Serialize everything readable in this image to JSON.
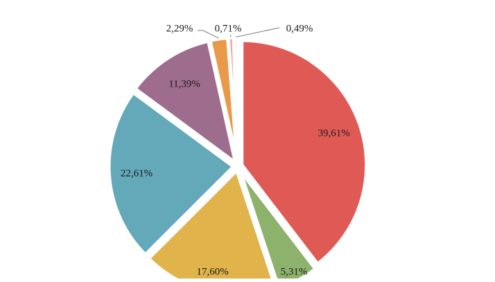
{
  "chart_data": {
    "type": "pie",
    "title": "",
    "slices": [
      {
        "label": "39,61%",
        "value": 39.61,
        "color": "#E05A55"
      },
      {
        "label": "5,31%",
        "value": 5.31,
        "color": "#8CB26B"
      },
      {
        "label": "17,60%",
        "value": 17.6,
        "color": "#E0B44A"
      },
      {
        "label": "22,61%",
        "value": 22.61,
        "color": "#63A9BA"
      },
      {
        "label": "11,39%",
        "value": 11.39,
        "color": "#9E6C8C"
      },
      {
        "label": "2,29%",
        "value": 2.29,
        "color": "#E8994A"
      },
      {
        "label": "0,71%",
        "value": 0.71,
        "color": "#F2A7A5"
      },
      {
        "label": "0,49%",
        "value": 0.49,
        "color": "#B9CFA2"
      }
    ],
    "legend": "none",
    "grid": false
  }
}
